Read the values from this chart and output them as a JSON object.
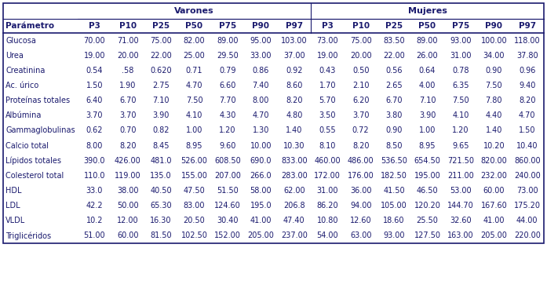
{
  "group1": "Varones",
  "group2": "Mujeres",
  "percentiles": [
    "P3",
    "P10",
    "P25",
    "P50",
    "P75",
    "P90",
    "P97"
  ],
  "parameters": [
    "Glucosa",
    "Urea",
    "Creatinina",
    "Ac. úrico",
    "Proteínas totales",
    "Albúmina",
    "Gammaglobulinas",
    "Calcio total",
    "Lípidos totales",
    "Colesterol total",
    "HDL",
    "LDL",
    "VLDL",
    "Triglicéridos"
  ],
  "varones_display": [
    [
      "70.00",
      "71.00",
      "75.00",
      "82.00",
      "89.00",
      "95.00",
      "103.00"
    ],
    [
      "19.00",
      "20.00",
      "22.00",
      "25.00",
      "29.50",
      "33.00",
      "37.00"
    ],
    [
      "0.54",
      ".58",
      "0.620",
      "0.71",
      "0.79",
      "0.86",
      "0.92"
    ],
    [
      "1.50",
      "1.90",
      "2.75",
      "4.70",
      "6.60",
      "7.40",
      "8.60"
    ],
    [
      "6.40",
      "6.70",
      "7.10",
      "7.50",
      "7.70",
      "8.00",
      "8.20"
    ],
    [
      "3.70",
      "3.70",
      "3.90",
      "4.10",
      "4.30",
      "4.70",
      "4.80"
    ],
    [
      "0.62",
      "0.70",
      "0.82",
      "1.00",
      "1.20",
      "1.30",
      "1.40"
    ],
    [
      "8.00",
      "8.20",
      "8.45",
      "8.95",
      "9.60",
      "10.00",
      "10.30"
    ],
    [
      "390.0",
      "426.00",
      "481.0",
      "526.00",
      "608.50",
      "690.0",
      "833.00"
    ],
    [
      "110.0",
      "119.00",
      "135.0",
      "155.00",
      "207.00",
      "266.0",
      "283.00"
    ],
    [
      "33.0",
      "38.00",
      "40.50",
      "47.50",
      "51.50",
      "58.00",
      "62.00"
    ],
    [
      "42.2",
      "50.00",
      "65.30",
      "83.00",
      "124.60",
      "195.0",
      "206.8"
    ],
    [
      "10.2",
      "12.00",
      "16.30",
      "20.50",
      "30.40",
      "41.00",
      "47.40"
    ],
    [
      "51.00",
      "60.00",
      "81.50",
      "102.50",
      "152.00",
      "205.00",
      "237.00"
    ]
  ],
  "mujeres_display": [
    [
      "73.00",
      "75.00",
      "83.50",
      "89.00",
      "93.00",
      "100.00",
      "118.00"
    ],
    [
      "19.00",
      "20.00",
      "22.00",
      "26.00",
      "31.00",
      "34.00",
      "37.80"
    ],
    [
      "0.43",
      "0.50",
      "0.56",
      "0.64",
      "0.78",
      "0.90",
      "0.96"
    ],
    [
      "1.70",
      "2.10",
      "2.65",
      "4.00",
      "6.35",
      "7.50",
      "9.40"
    ],
    [
      "5.70",
      "6.20",
      "6.70",
      "7.10",
      "7.50",
      "7.80",
      "8.20"
    ],
    [
      "3.50",
      "3.70",
      "3.80",
      "3.90",
      "4.10",
      "4.40",
      "4.70"
    ],
    [
      "0.55",
      "0.72",
      "0.90",
      "1.00",
      "1.20",
      "1.40",
      "1.50"
    ],
    [
      "8.10",
      "8.20",
      "8.50",
      "8.95",
      "9.65",
      "10.20",
      "10.40"
    ],
    [
      "460.00",
      "486.00",
      "536.50",
      "654.50",
      "721.50",
      "820.00",
      "860.00"
    ],
    [
      "172.00",
      "176.00",
      "182.50",
      "195.00",
      "211.00",
      "232.00",
      "240.00"
    ],
    [
      "31.00",
      "36.00",
      "41.50",
      "46.50",
      "53.00",
      "60.00",
      "73.00"
    ],
    [
      "86.20",
      "94.00",
      "105.00",
      "120.20",
      "144.70",
      "167.60",
      "175.20"
    ],
    [
      "10.80",
      "12.60",
      "18.60",
      "25.50",
      "32.60",
      "41.00",
      "44.00"
    ],
    [
      "54.00",
      "63.00",
      "93.00",
      "127.50",
      "163.00",
      "205.00",
      "220.00"
    ]
  ],
  "text_color": "#1a1a6e",
  "border_color": "#1a1a6e",
  "figsize": [
    6.97,
    3.67
  ],
  "dpi": 100
}
